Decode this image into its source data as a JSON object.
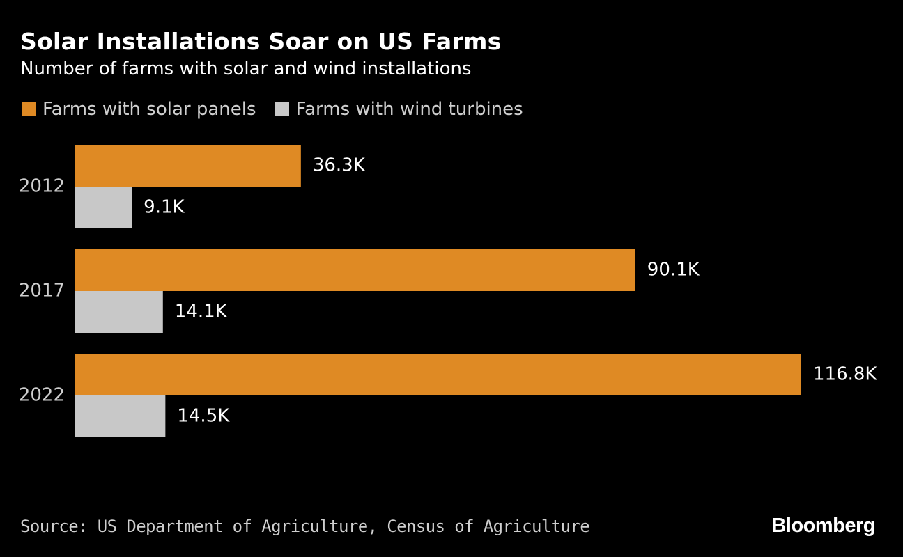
{
  "title": "Solar Installations Soar on US Farms",
  "subtitle": "Number of farms with solar and wind installations",
  "source": "Source: US Department of Agriculture, Census of Agriculture",
  "brand": "Bloomberg",
  "colors": {
    "background": "#000000",
    "solar": "#DF8A24",
    "wind": "#C8C8C8",
    "text": "#FFFFFF",
    "muted_text": "#CFCFCF"
  },
  "chart_data": {
    "type": "bar",
    "orientation": "horizontal",
    "title": "Solar Installations Soar on US Farms",
    "subtitle": "Number of farms with solar and wind installations",
    "categories": [
      "2012",
      "2017",
      "2022"
    ],
    "series": [
      {
        "name": "Farms with solar panels",
        "values": [
          36.3,
          90.1,
          116.8
        ],
        "labels": [
          "36.3K",
          "90.1K",
          "116.8K"
        ],
        "color": "#DF8A24"
      },
      {
        "name": "Farms with wind turbines",
        "values": [
          9.1,
          14.1,
          14.5
        ],
        "labels": [
          "9.1K",
          "14.1K",
          "14.5K"
        ],
        "color": "#C8C8C8"
      }
    ],
    "unit": "thousand farms",
    "xlim": [
      0,
      125
    ],
    "grid": false,
    "legend": "top-left"
  }
}
